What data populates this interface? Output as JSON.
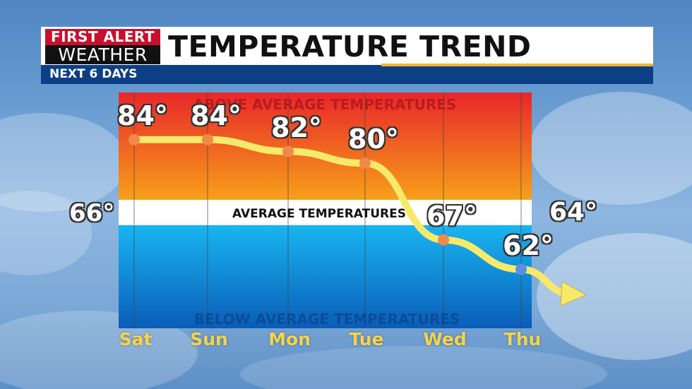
{
  "header": {
    "logo_line1": "FIRST ALERT",
    "logo_line2": "WEATHER",
    "title": "TEMPERATURE TREND",
    "subtitle": "NEXT 6 DAYS"
  },
  "zones": {
    "above": "ABOVE AVERAGE TEMPERATURES",
    "average": "AVERAGE TEMPERATURES",
    "below": "BELOW AVERAGE TEMPERATURES"
  },
  "chart_data": {
    "type": "line",
    "categories": [
      "Sat",
      "Sun",
      "Mon",
      "Tue",
      "Wed",
      "Thu"
    ],
    "values": [
      84,
      84,
      82,
      80,
      67,
      62
    ],
    "value_labels": [
      "84°",
      "84°",
      "82°",
      "80°",
      "67°",
      "62°"
    ],
    "average": 66,
    "average_label": "66°",
    "trend_end_value": 64,
    "trend_end_label": "64°",
    "ylim": [
      52,
      92
    ],
    "grid": true,
    "colors": {
      "line": "#f7e96a",
      "warm_point": "#f08a4b",
      "cool_point": "#5b8fe0",
      "tick_label": "#f5d34a",
      "above_top": "#e8262a",
      "above_bottom": "#f7a019",
      "below_top": "#19b5f0",
      "below_bottom": "#0a5db8"
    }
  }
}
